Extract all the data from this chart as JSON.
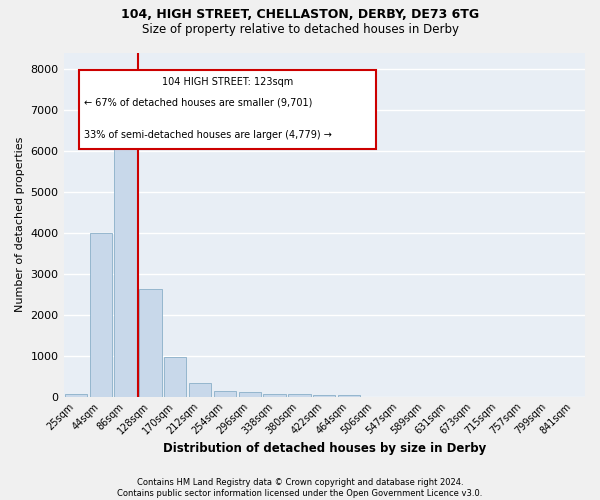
{
  "title_line1": "104, HIGH STREET, CHELLASTON, DERBY, DE73 6TG",
  "title_line2": "Size of property relative to detached houses in Derby",
  "xlabel": "Distribution of detached houses by size in Derby",
  "ylabel": "Number of detached properties",
  "bar_color": "#c8d8ea",
  "bar_edge_color": "#8aafc8",
  "background_color": "#e8eef5",
  "grid_color": "#ffffff",
  "annotation_box_color": "#cc0000",
  "vline_color": "#cc0000",
  "annotation_title": "104 HIGH STREET: 123sqm",
  "annotation_line2": "← 67% of detached houses are smaller (9,701)",
  "annotation_line3": "33% of semi-detached houses are larger (4,779) →",
  "footer_line1": "Contains HM Land Registry data © Crown copyright and database right 2024.",
  "footer_line2": "Contains public sector information licensed under the Open Government Licence v3.0.",
  "bins": [
    "25sqm",
    "44sqm",
    "86sqm",
    "128sqm",
    "170sqm",
    "212sqm",
    "254sqm",
    "296sqm",
    "338sqm",
    "380sqm",
    "422sqm",
    "464sqm",
    "506sqm",
    "547sqm",
    "589sqm",
    "631sqm",
    "673sqm",
    "715sqm",
    "757sqm",
    "799sqm",
    "841sqm"
  ],
  "values": [
    70,
    4000,
    6600,
    2620,
    960,
    330,
    130,
    110,
    70,
    55,
    50,
    50,
    0,
    0,
    0,
    0,
    0,
    0,
    0,
    0,
    0
  ],
  "vline_x_index": 2.5,
  "ylim": [
    0,
    8400
  ],
  "yticks": [
    0,
    1000,
    2000,
    3000,
    4000,
    5000,
    6000,
    7000,
    8000
  ],
  "fig_bg": "#f0f0f0"
}
